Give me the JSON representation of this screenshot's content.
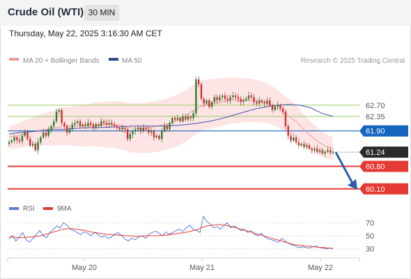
{
  "header": {
    "instrument": "Crude Oil (WTI)",
    "timeframe": "30 MIN",
    "datetime": "Thursday, May 22, 2025 3:16:30 AM CET"
  },
  "colors": {
    "bull": "#2e7d32",
    "bear": "#d32f2f",
    "ma20": "#ef9a9a",
    "ma50": "#3f51b5",
    "band_fill": "#fde0e0",
    "support_line": "#e53935",
    "pivot_line": "#1565c0",
    "resistance_line": "#9ccc65",
    "arrow": "#2a5ea8",
    "rsi": "#5c7bd9",
    "rsi_ma": "#e53935"
  },
  "chart_data": [
    {
      "type": "candlestick",
      "legend": [
        {
          "name": "MA 20 + Bollinger Bands",
          "color": "#ef9a9a"
        },
        {
          "name": "MA 50",
          "color": "#2a4d8f"
        }
      ],
      "watermark": "Research © 2025 Trading Central",
      "x_ticks": [
        "May 20",
        "May 21",
        "May 22"
      ],
      "y_range": [
        59.9,
        63.8
      ],
      "levels": [
        {
          "label": "62.70",
          "value": 62.7,
          "kind": "resistance"
        },
        {
          "label": "62.35",
          "value": 62.35,
          "kind": "resistance"
        },
        {
          "label": "61.90",
          "value": 61.9,
          "kind": "pivot"
        },
        {
          "label": "61.24",
          "value": 61.24,
          "kind": "last"
        },
        {
          "label": "60.80",
          "value": 60.8,
          "kind": "support"
        },
        {
          "label": "60.10",
          "value": 60.1,
          "kind": "support"
        }
      ],
      "close_path": [
        61.55,
        61.6,
        61.7,
        61.62,
        61.58,
        61.75,
        61.85,
        61.65,
        61.45,
        61.5,
        61.3,
        61.55,
        61.7,
        61.85,
        61.75,
        61.95,
        62.05,
        62.2,
        62.5,
        62.55,
        62.15,
        62.05,
        61.85,
        61.95,
        62.1,
        62.15,
        62.2,
        62.05,
        62.1,
        62.05,
        62.15,
        62.1,
        62.0,
        62.1,
        62.05,
        62.2,
        62.15,
        62.1,
        62.15,
        62.1,
        62.05,
        62.0,
        61.95,
        62.0,
        61.95,
        61.65,
        61.8,
        61.9,
        61.95,
        62.0,
        61.9,
        62.0,
        61.95,
        61.85,
        61.9,
        61.7,
        61.75,
        61.65,
        61.9,
        62.05,
        61.95,
        62.15,
        62.3,
        62.25,
        62.3,
        62.2,
        62.35,
        62.25,
        62.35,
        62.3,
        62.45,
        63.5,
        63.35,
        62.9,
        62.75,
        62.85,
        62.65,
        62.8,
        62.95,
        62.85,
        62.95,
        63.0,
        62.9,
        62.85,
        62.95,
        63.0,
        62.95,
        62.9,
        62.8,
        62.85,
        62.9,
        63.0,
        62.95,
        62.8,
        62.75,
        62.85,
        62.8,
        62.75,
        62.85,
        62.7,
        62.55,
        62.65,
        62.7,
        62.6,
        62.5,
        62.05,
        61.75,
        61.6,
        61.7,
        61.55,
        61.45,
        61.5,
        61.4,
        61.45,
        61.35,
        61.3,
        61.35,
        61.25,
        61.3,
        61.2,
        61.25,
        61.3,
        61.22,
        61.24
      ],
      "ma20_path": [
        61.7,
        61.75,
        61.85,
        61.9,
        61.95,
        62.0,
        62.05,
        62.05,
        62.05,
        62.1,
        62.1,
        62.1,
        62.08,
        62.0,
        61.98,
        62.0,
        62.05,
        62.1,
        62.2,
        62.35,
        62.55,
        62.7,
        62.75,
        62.8,
        62.85,
        62.85,
        62.85,
        62.82,
        62.75,
        62.6,
        62.4,
        62.2,
        61.9,
        61.65,
        61.45,
        61.35
      ],
      "ma50_path": [
        61.8,
        61.85,
        61.88,
        61.9,
        61.95,
        61.95,
        61.98,
        62.0,
        62.0,
        62.02,
        62.03,
        62.05,
        62.05,
        62.05,
        62.05,
        62.07,
        62.1,
        62.15,
        62.2,
        62.28,
        62.38,
        62.48,
        62.58,
        62.65,
        62.7,
        62.72,
        62.7,
        62.62,
        62.45,
        62.35
      ],
      "forecast_arrow": {
        "from": 61.24,
        "to": 60.1
      }
    },
    {
      "type": "line",
      "legend": [
        {
          "name": "RSI",
          "color": "#5c7bd9"
        },
        {
          "name": "9MA",
          "color": "#e53935"
        }
      ],
      "y_ticks": [
        "70",
        "50",
        "30"
      ],
      "y_range": [
        20,
        80
      ],
      "rsi": [
        45,
        50,
        42,
        48,
        55,
        44,
        40,
        46,
        52,
        58,
        50,
        47,
        55,
        60,
        65,
        62,
        70,
        66,
        60,
        58,
        55,
        52,
        56,
        54,
        50,
        55,
        52,
        48,
        50,
        46,
        48,
        52,
        55,
        50,
        45,
        42,
        46,
        44,
        48,
        50,
        46,
        52,
        55,
        57,
        54,
        50,
        56,
        52,
        55,
        58,
        60,
        57,
        62,
        66,
        60,
        58,
        55,
        80,
        72,
        68,
        62,
        64,
        60,
        66,
        70,
        62,
        65,
        62,
        58,
        60,
        55,
        58,
        52,
        50,
        54,
        48,
        45,
        44,
        42,
        40,
        46,
        42,
        38,
        36,
        34,
        32,
        33,
        32,
        31,
        33,
        34,
        32,
        31,
        30,
        31,
        30
      ],
      "rsi_ma": [
        48,
        48,
        47,
        47,
        48,
        48,
        49,
        50,
        52,
        54,
        56,
        58,
        60,
        61,
        61,
        60,
        59,
        58,
        56,
        55,
        54,
        53,
        52,
        52,
        51,
        51,
        50,
        50,
        49,
        49,
        50,
        50,
        50,
        50,
        51,
        51,
        52,
        53,
        54,
        55,
        56,
        58,
        60,
        63,
        65,
        66,
        67,
        67,
        66,
        65,
        63,
        61,
        59,
        57,
        55,
        53,
        51,
        49,
        47,
        45,
        43,
        41,
        39,
        37,
        36,
        35,
        34,
        34,
        33,
        32,
        32,
        31,
        31
      ]
    }
  ]
}
